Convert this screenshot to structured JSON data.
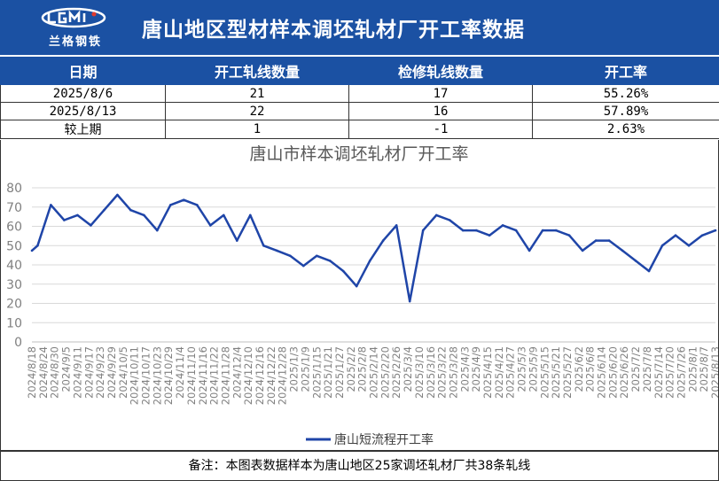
{
  "header": {
    "logo_text": "兰格钢铁",
    "title": "唐山地区型材样本调坯轧材厂开工率数据"
  },
  "table": {
    "columns": [
      "日期",
      "开工轧线数量",
      "检修轧线数量",
      "开工率"
    ],
    "rows": [
      [
        "2025/8/6",
        "21",
        "17",
        "55.26%"
      ],
      [
        "2025/8/13",
        "22",
        "16",
        "57.89%"
      ],
      [
        "较上期",
        "1",
        "-1",
        "2.63%"
      ]
    ]
  },
  "colors": {
    "brand": "#1b51a3",
    "line": "#1f45a8",
    "axis_text": "#808080",
    "grid": "#d9d9d9"
  },
  "chart_data": {
    "type": "line",
    "title": "唐山市样本调坯轧材厂开工率",
    "ylim": [
      0,
      80
    ],
    "yticks": [
      0,
      10,
      20,
      30,
      40,
      50,
      60,
      70,
      80
    ],
    "grid": true,
    "legend_position": "bottom",
    "categories": [
      "2024/8/18",
      "2024/8/24",
      "2024/8/30",
      "2024/9/5",
      "2024/9/11",
      "2024/9/17",
      "2024/9/23",
      "2024/9/29",
      "2024/10/5",
      "2024/10/11",
      "2024/10/17",
      "2024/10/23",
      "2024/10/29",
      "2024/11/4",
      "2024/11/10",
      "2024/11/16",
      "2024/11/22",
      "2024/11/28",
      "2024/12/4",
      "2024/12/10",
      "2024/12/16",
      "2024/12/22",
      "2024/12/28",
      "2025/1/3",
      "2025/1/9",
      "2025/1/15",
      "2025/1/21",
      "2025/1/27",
      "2025/2/2",
      "2025/2/8",
      "2025/2/14",
      "2025/2/20",
      "2025/2/26",
      "2025/3/4",
      "2025/3/10",
      "2025/3/16",
      "2025/3/22",
      "2025/3/28",
      "2025/4/3",
      "2025/4/9",
      "2025/4/15",
      "2025/4/21",
      "2025/4/27",
      "2025/5/3",
      "2025/5/9",
      "2025/5/15",
      "2025/5/21",
      "2025/5/27",
      "2025/6/2",
      "2025/6/8",
      "2025/6/14",
      "2025/6/20",
      "2025/6/26",
      "2025/7/2",
      "2025/7/8",
      "2025/7/14",
      "2025/7/20",
      "2025/7/26",
      "2025/8/1",
      "2025/8/7",
      "2025/8/13"
    ],
    "series": [
      {
        "name": "唐山短流程开工率",
        "points": [
          [
            "2024/8/18",
            47.4
          ],
          [
            "2024/8/21",
            50
          ],
          [
            "2024/8/28",
            71.1
          ],
          [
            "2024/9/4",
            63.2
          ],
          [
            "2024/9/11",
            65.8
          ],
          [
            "2024/9/18",
            60.5
          ],
          [
            "2024/9/25",
            68.4
          ],
          [
            "2024/10/2",
            76.3
          ],
          [
            "2024/10/9",
            68.4
          ],
          [
            "2024/10/16",
            65.8
          ],
          [
            "2024/10/23",
            57.9
          ],
          [
            "2024/10/30",
            71.1
          ],
          [
            "2024/11/6",
            73.7
          ],
          [
            "2024/11/13",
            71.1
          ],
          [
            "2024/11/20",
            60.5
          ],
          [
            "2024/11/27",
            65.8
          ],
          [
            "2024/12/4",
            52.6
          ],
          [
            "2024/12/11",
            65.8
          ],
          [
            "2024/12/18",
            50
          ],
          [
            "2024/12/25",
            47.4
          ],
          [
            "2025/1/1",
            44.7
          ],
          [
            "2025/1/8",
            39.5
          ],
          [
            "2025/1/15",
            44.7
          ],
          [
            "2025/1/22",
            42.1
          ],
          [
            "2025/1/29",
            36.8
          ],
          [
            "2025/2/5",
            28.9
          ],
          [
            "2025/2/12",
            42.1
          ],
          [
            "2025/2/19",
            52.6
          ],
          [
            "2025/2/26",
            60.5
          ],
          [
            "2025/3/5",
            21.1
          ],
          [
            "2025/3/12",
            57.9
          ],
          [
            "2025/3/19",
            65.8
          ],
          [
            "2025/3/26",
            63.2
          ],
          [
            "2025/4/2",
            57.9
          ],
          [
            "2025/4/9",
            57.9
          ],
          [
            "2025/4/16",
            55.3
          ],
          [
            "2025/4/23",
            60.5
          ],
          [
            "2025/4/30",
            57.9
          ],
          [
            "2025/5/7",
            47.4
          ],
          [
            "2025/5/14",
            57.9
          ],
          [
            "2025/5/21",
            57.9
          ],
          [
            "2025/5/28",
            55.3
          ],
          [
            "2025/6/4",
            47.4
          ],
          [
            "2025/6/11",
            52.6
          ],
          [
            "2025/6/18",
            52.6
          ],
          [
            "2025/6/25",
            47.4
          ],
          [
            "2025/7/2",
            42.1
          ],
          [
            "2025/7/9",
            36.8
          ],
          [
            "2025/7/16",
            50
          ],
          [
            "2025/7/23",
            55.3
          ],
          [
            "2025/7/30",
            50
          ],
          [
            "2025/8/6",
            55.26
          ],
          [
            "2025/8/13",
            57.89
          ]
        ]
      }
    ]
  },
  "footnote": "备注：本图表数据样本为唐山地区25家调坯轧材厂共38条轧线"
}
